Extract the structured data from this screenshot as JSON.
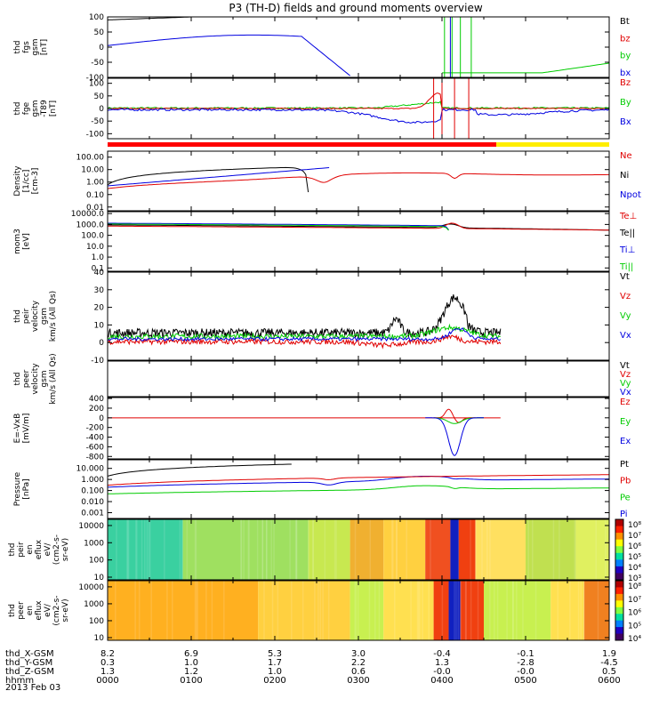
{
  "title": "P3 (TH-D) fields and ground moments overview",
  "date_label": "2013 Feb 03",
  "chart_data": {
    "type": "multi-panel time series",
    "x": {
      "ticks": [
        "0000",
        "0100",
        "0200",
        "0300",
        "0400",
        "0500",
        "0600"
      ],
      "unit_label": "hhmm",
      "range_hours": [
        0,
        6
      ],
      "coordinate_rows": [
        {
          "label": "thd_X-GSM",
          "values": [
            "8.2",
            "6.9",
            "5.3",
            "3.0",
            "-0.4",
            "-0.1",
            "1.9"
          ]
        },
        {
          "label": "thd_Y-GSM",
          "values": [
            "0.3",
            "1.0",
            "1.7",
            "2.2",
            "1.3",
            "-2.8",
            "-4.5"
          ]
        },
        {
          "label": "thd_Z-GSM",
          "values": [
            "1.3",
            "1.2",
            "1.0",
            "0.6",
            "-0.0",
            "-0.0",
            "0.5"
          ]
        }
      ]
    },
    "panels": [
      {
        "id": "fgs",
        "ylabel": [
          "thd",
          "fgs",
          "gsm",
          "[nT]"
        ],
        "yticks": [
          "100",
          "50",
          "0",
          "-50",
          "-100"
        ],
        "ylim": [
          -100,
          100
        ],
        "series": [
          {
            "name": "Bt",
            "color": "#000000"
          },
          {
            "name": "bz",
            "color": "#e00000"
          },
          {
            "name": "by",
            "color": "#00cc00"
          },
          {
            "name": "bx",
            "color": "#0000e0"
          }
        ]
      },
      {
        "id": "fge",
        "ylabel": [
          "thd",
          "fge",
          "gsm",
          "-T89",
          "[nT]"
        ],
        "yticks": [
          "100",
          "50",
          "0",
          "-50",
          "-100"
        ],
        "ylim": [
          -120,
          120
        ],
        "series": [
          {
            "name": "Bz",
            "color": "#e00000"
          },
          {
            "name": "By",
            "color": "#00cc00"
          },
          {
            "name": "Bx",
            "color": "#0000e0"
          }
        ]
      },
      {
        "id": "density",
        "ylabel": [
          "Density",
          "[1/cc]",
          "[cm-3]"
        ],
        "yticks": [
          "100.00",
          "10.00",
          "1.00",
          "0.10",
          "0.01"
        ],
        "ylim": [
          0.005,
          300
        ],
        "log": true,
        "series": [
          {
            "name": "Ne",
            "color": "#e00000"
          },
          {
            "name": "Ni",
            "color": "#000000"
          },
          {
            "name": "Npot",
            "color": "#0000e0"
          }
        ]
      },
      {
        "id": "temp",
        "ylabel": [
          "mom3",
          "[eV]"
        ],
        "yticks": [
          "10000.0",
          "1000.0",
          "100.0",
          "10.0",
          "1.0",
          "0.1"
        ],
        "ylim": [
          0.05,
          15000
        ],
        "log": true,
        "series": [
          {
            "name": "Te⊥",
            "color": "#e00000"
          },
          {
            "name": "Te||",
            "color": "#000000"
          },
          {
            "name": "Ti⊥",
            "color": "#0000e0"
          },
          {
            "name": "Ti||",
            "color": "#00cc00"
          }
        ]
      },
      {
        "id": "peir_vel",
        "ylabel": [
          "thd",
          "peir",
          "velocity",
          "gsm",
          "km/s (All Qs)"
        ],
        "yticks": [
          "40",
          "30",
          "20",
          "10",
          "0",
          "-10"
        ],
        "ylim": [
          -10,
          40
        ],
        "series": [
          {
            "name": "Vt",
            "color": "#000000"
          },
          {
            "name": "Vz",
            "color": "#e00000"
          },
          {
            "name": "Vy",
            "color": "#00cc00"
          },
          {
            "name": "Vx",
            "color": "#0000e0"
          }
        ]
      },
      {
        "id": "peer_vel",
        "ylabel": [
          "thd",
          "peer",
          "velocity",
          "gsm",
          "km/s (All Qs)"
        ],
        "yticks": [],
        "ylim": [
          0,
          1
        ],
        "series": [
          {
            "name": "Vt",
            "color": "#000000"
          },
          {
            "name": "Vz",
            "color": "#e00000"
          },
          {
            "name": "Vy",
            "color": "#00cc00"
          },
          {
            "name": "Vx",
            "color": "#0000e0"
          }
        ]
      },
      {
        "id": "efield",
        "ylabel": [
          "E=-VxB",
          "[mV/m]"
        ],
        "yticks": [
          "400",
          "200",
          "0",
          "-200",
          "-400",
          "-600",
          "-800"
        ],
        "ylim": [
          -850,
          420
        ],
        "series": [
          {
            "name": "Ez",
            "color": "#e00000"
          },
          {
            "name": "Ey",
            "color": "#00cc00"
          },
          {
            "name": "Ex",
            "color": "#0000e0"
          }
        ]
      },
      {
        "id": "pressure",
        "ylabel": [
          "Pressure",
          "[nPa]"
        ],
        "yticks": [
          "10.000",
          "1.000",
          "0.100",
          "0.010",
          "0.001"
        ],
        "ylim": [
          0.0003,
          60
        ],
        "log": true,
        "series": [
          {
            "name": "Pt",
            "color": "#000000"
          },
          {
            "name": "Pb",
            "color": "#e00000"
          },
          {
            "name": "Pe",
            "color": "#00cc00"
          },
          {
            "name": "Pi",
            "color": "#0000e0"
          }
        ]
      },
      {
        "id": "peir_eflux",
        "type": "heatmap",
        "ylabel": [
          "thd",
          "peir",
          "en",
          "eflux",
          "eV/",
          "(cm2-s-",
          "sr-eV)"
        ],
        "yticks": [
          "10000",
          "1000",
          "100",
          "10"
        ],
        "colorbar_ticks": [
          "10⁸",
          "10⁷",
          "10⁶",
          "10⁵",
          "10⁴",
          "10³"
        ]
      },
      {
        "id": "peer_eflux",
        "type": "heatmap",
        "ylabel": [
          "thd",
          "peer",
          "en",
          "eflux",
          "eV/",
          "(cm2-s-",
          "sr-eV)"
        ],
        "yticks": [
          "10000",
          "1000",
          "100",
          "10"
        ],
        "colorbar_ticks": [
          "10⁸",
          "10⁷",
          "10⁶",
          "10⁵",
          "10⁴"
        ]
      }
    ],
    "mode_bar": [
      {
        "from_hour": 0.0,
        "to_hour": 4.65,
        "color": "#ff0000"
      },
      {
        "from_hour": 4.65,
        "to_hour": 6.0,
        "color": "#ffee00"
      }
    ],
    "colors": {
      "black": "#000000",
      "red": "#e00000",
      "green": "#00cc00",
      "blue": "#0000e0"
    }
  }
}
